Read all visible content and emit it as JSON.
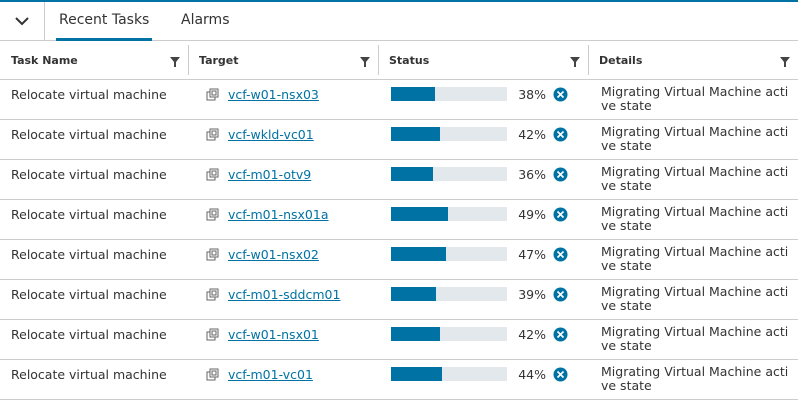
{
  "tabs": [
    "Recent Tasks",
    "Alarms"
  ],
  "columns": [
    "Task Name",
    "Target",
    "Status",
    "Details"
  ],
  "rows": [
    {
      "task": "Relocate virtual machine",
      "target": "vcf-w01-nsx03",
      "status": {
        "value": 38,
        "label": "38%"
      },
      "details": "Migrating Virtual Machine active state"
    },
    {
      "task": "Relocate virtual machine",
      "target": "vcf-wkld-vc01",
      "status": {
        "value": 42,
        "label": "42%"
      },
      "details": "Migrating Virtual Machine active state"
    },
    {
      "task": "Relocate virtual machine",
      "target": "vcf-m01-otv9",
      "status": {
        "value": 36,
        "label": "36%"
      },
      "details": "Migrating Virtual Machine active state"
    },
    {
      "task": "Relocate virtual machine",
      "target": "vcf-m01-nsx01a",
      "status": {
        "value": 49,
        "label": "49%"
      },
      "details": "Migrating Virtual Machine active state"
    },
    {
      "task": "Relocate virtual machine",
      "target": "vcf-w01-nsx02",
      "status": {
        "value": 47,
        "label": "47%"
      },
      "details": "Migrating Virtual Machine active state"
    },
    {
      "task": "Relocate virtual machine",
      "target": "vcf-m01-sddcm01",
      "status": {
        "value": 39,
        "label": "39%"
      },
      "details": "Migrating Virtual Machine active state"
    },
    {
      "task": "Relocate virtual machine",
      "target": "vcf-w01-nsx01",
      "status": {
        "value": 42,
        "label": "42%"
      },
      "details": "Migrating Virtual Machine active state"
    },
    {
      "task": "Relocate virtual machine",
      "target": "vcf-m01-vc01",
      "status": {
        "value": 44,
        "label": "44%"
      },
      "details": "Migrating Virtual Machine active state"
    }
  ]
}
